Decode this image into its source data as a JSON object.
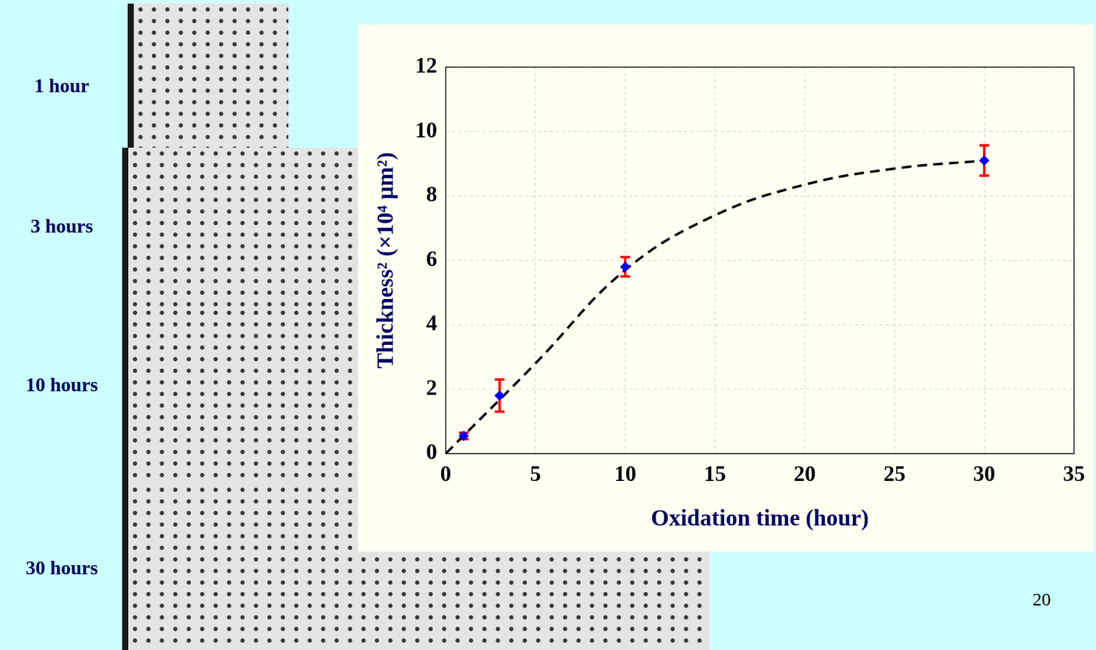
{
  "slide": {
    "image_labels": [
      "1 hour",
      "3 hours",
      "10 hours",
      "30 hours"
    ],
    "page_number": "20"
  },
  "chart_data": {
    "type": "scatter",
    "x_label": "Oxidation time (hour)",
    "y_label": "Thickness² (×10⁴ µm²)",
    "xlim": [
      0,
      35
    ],
    "xticks": [
      0,
      5,
      10,
      15,
      20,
      25,
      30,
      35
    ],
    "ylim": [
      0,
      12
    ],
    "yticks": [
      0,
      2,
      4,
      6,
      8,
      10,
      12
    ],
    "grid": true,
    "series": [
      {
        "type": "scatter",
        "marker": "diamond",
        "color": "#0000ff",
        "error_color": "#ff0000",
        "x": [
          1,
          3,
          10,
          30
        ],
        "values": [
          0.55,
          1.8,
          5.8,
          9.1
        ],
        "errors": [
          0.1,
          0.5,
          0.3,
          0.47
        ]
      },
      {
        "type": "line",
        "line_style": "dashed",
        "color": "#000000",
        "x": [
          0,
          5,
          10,
          15,
          20,
          25,
          30
        ],
        "values": [
          0,
          2.8,
          5.7,
          7.4,
          8.35,
          8.85,
          9.1
        ]
      }
    ]
  }
}
